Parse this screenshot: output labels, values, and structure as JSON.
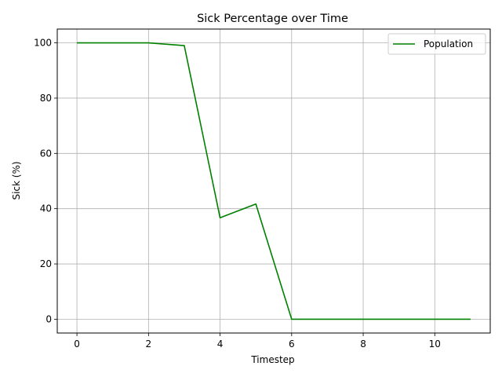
{
  "chart_data": {
    "type": "line",
    "title": "Sick Percentage over Time",
    "xlabel": "Timestep",
    "ylabel": "Sick (%)",
    "xlim": [
      -0.55,
      11.55
    ],
    "ylim": [
      -5,
      105
    ],
    "xticks": [
      0,
      2,
      4,
      6,
      8,
      10
    ],
    "yticks": [
      0,
      20,
      40,
      60,
      80,
      100
    ],
    "grid": true,
    "legend_position": "top-right",
    "series": [
      {
        "name": "Population",
        "color": "#008000",
        "x": [
          0,
          1,
          2,
          3,
          4,
          5,
          6,
          7,
          8,
          9,
          10,
          11
        ],
        "y": [
          100,
          100,
          100,
          99,
          36.7,
          41.7,
          0,
          0,
          0,
          0,
          0,
          0
        ]
      }
    ]
  }
}
